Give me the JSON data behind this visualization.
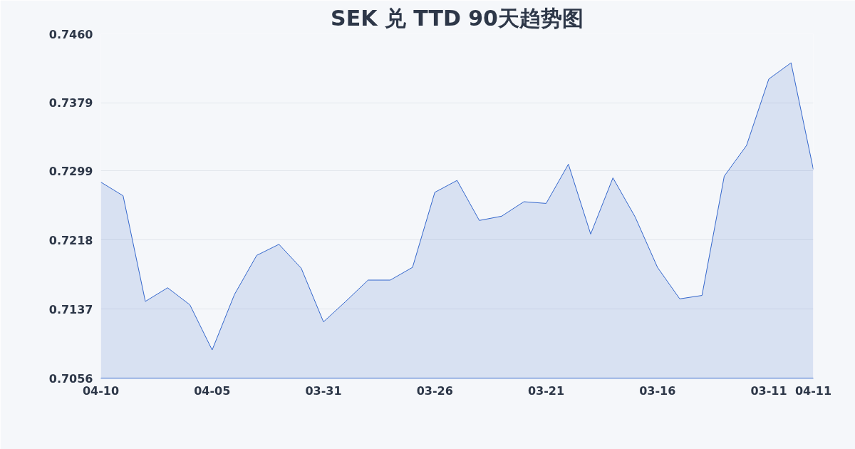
{
  "chart_data": {
    "type": "area",
    "title": "SEK 兑 TTD 90天趋势图",
    "categories": [
      "04-10",
      null,
      null,
      null,
      null,
      "04-05",
      null,
      null,
      null,
      null,
      "03-31",
      null,
      null,
      null,
      null,
      "03-26",
      null,
      null,
      null,
      null,
      "03-21",
      null,
      null,
      null,
      null,
      "03-16",
      null,
      null,
      null,
      null,
      "03-11",
      null,
      "04-11"
    ],
    "series": [
      {
        "color": "#3366cc",
        "values": [
          0.7286,
          0.727,
          0.7146,
          0.7162,
          0.7142,
          0.7089,
          0.7154,
          0.72,
          0.7213,
          0.7185,
          0.7122,
          0.7146,
          0.7171,
          0.7171,
          0.7186,
          0.7274,
          0.7288,
          0.7241,
          0.7246,
          0.7263,
          0.7261,
          0.7307,
          0.7225,
          0.7291,
          0.7245,
          0.7186,
          0.7149,
          0.7153,
          0.7293,
          0.7329,
          0.7407,
          0.7426,
          0.7301
        ]
      }
    ],
    "ylim": [
      0.7056,
      0.746
    ],
    "yticks": [
      0.7056,
      0.7137,
      0.7218,
      0.7299,
      0.7379,
      {
        "value": 0.746,
        "label": "0.7460"
      }
    ],
    "grid": "y"
  }
}
